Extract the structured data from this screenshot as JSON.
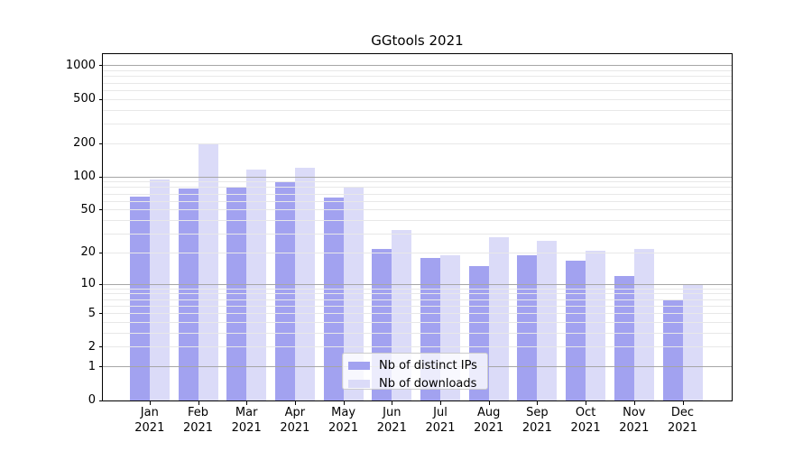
{
  "figure": {
    "title": "GGtools 2021"
  },
  "chart_data": {
    "type": "bar",
    "title": "GGtools 2021",
    "categories": [
      "Jan",
      "Feb",
      "Mar",
      "Apr",
      "May",
      "Jun",
      "Jul",
      "Aug",
      "Sep",
      "Oct",
      "Nov",
      "Dec"
    ],
    "category_year": "2021",
    "xlabel": "",
    "ylabel": "",
    "yscale": "log1p",
    "yticks": [
      0,
      1,
      2,
      5,
      10,
      20,
      50,
      100,
      200,
      500,
      1000
    ],
    "ylim": [
      0,
      1273
    ],
    "grid": {
      "major": true,
      "minor": true,
      "drawn_above_bars": true
    },
    "legend_position": "lower center",
    "series": [
      {
        "name": "Nb of distinct IPs",
        "color": "#a2a2f0",
        "values": [
          66,
          79,
          80,
          92,
          65,
          22,
          18,
          15,
          19,
          17,
          12,
          7
        ]
      },
      {
        "name": "Nb of downloads",
        "color": "#dbdbf8",
        "values": [
          94,
          198,
          116,
          120,
          82,
          33,
          19,
          28,
          26,
          21,
          22,
          10
        ]
      }
    ],
    "colors": {
      "background": "#ffffff",
      "axis": "#000000",
      "major_grid": "#a6a6a6",
      "minor_grid": "#e8e8e8",
      "text": "#000000",
      "legend_border": "#cccccc",
      "legend_background": "rgba(255,255,255,0.8)"
    }
  }
}
